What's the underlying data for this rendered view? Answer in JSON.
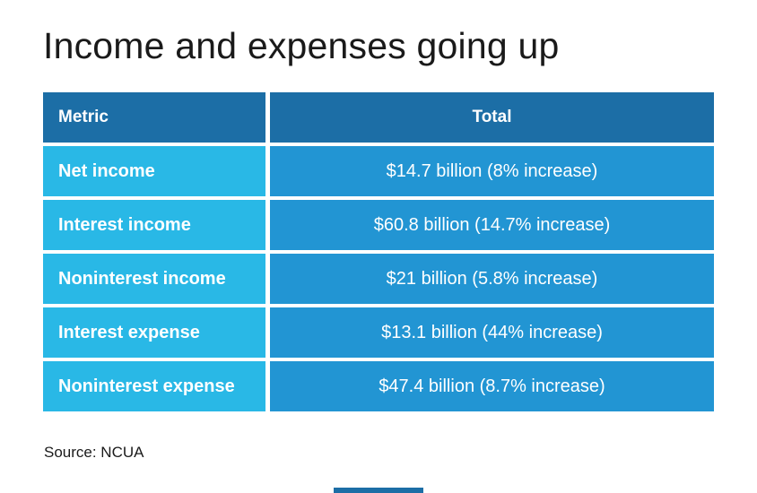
{
  "page": {
    "title": "Income and expenses going up",
    "source": "Source: NCUA"
  },
  "colors": {
    "header_bg": "#1c6ea6",
    "metric_cell_bg": "#29b8e6",
    "total_cell_bg": "#2295d3",
    "text_on_blue": "#ffffff",
    "title_text": "#1a1a1a",
    "accent_bar": "#1c6ea6"
  },
  "table": {
    "columns": [
      "Metric",
      "Total"
    ],
    "rows": [
      {
        "metric": "Net income",
        "total": "$14.7 billion (8% increase)"
      },
      {
        "metric": "Interest income",
        "total": "$60.8 billion (14.7% increase)"
      },
      {
        "metric": "Noninterest income",
        "total": "$21 billion (5.8% increase)"
      },
      {
        "metric": "Interest expense",
        "total": "$13.1 billion (44% increase)"
      },
      {
        "metric": "Noninterest expense",
        "total": "$47.4 billion (8.7% increase)"
      }
    ]
  },
  "chart_data": {
    "type": "table",
    "title": "Income and expenses going up",
    "columns": [
      "Metric",
      "Total"
    ],
    "rows": [
      [
        "Net income",
        "$14.7 billion (8% increase)"
      ],
      [
        "Interest income",
        "$60.8 billion (14.7% increase)"
      ],
      [
        "Noninterest income",
        "$21 billion (5.8% increase)"
      ],
      [
        "Interest expense",
        "$13.1 billion (44% increase)"
      ],
      [
        "Noninterest expense",
        "$47.4 billion (8.7% increase)"
      ]
    ],
    "values": {
      "net_income_billion": 14.7,
      "net_income_increase_pct": 8,
      "interest_income_billion": 60.8,
      "interest_income_increase_pct": 14.7,
      "noninterest_income_billion": 21,
      "noninterest_income_increase_pct": 5.8,
      "interest_expense_billion": 13.1,
      "interest_expense_increase_pct": 44,
      "noninterest_expense_billion": 47.4,
      "noninterest_expense_increase_pct": 8.7
    },
    "source": "NCUA",
    "layout": {
      "header_row": true,
      "column_alignment": [
        "left",
        "center"
      ]
    }
  }
}
